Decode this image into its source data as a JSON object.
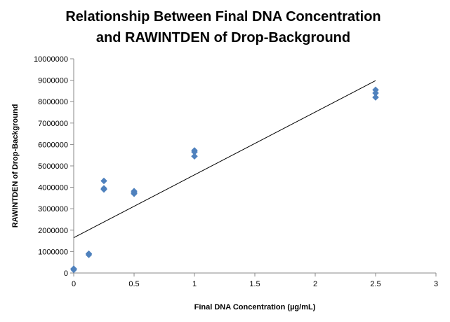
{
  "chart_data": {
    "type": "scatter",
    "title_lines": [
      "Relationship Between Final DNA Concentration",
      "and RAWINTDEN of Drop-Background"
    ],
    "xlabel": "Final DNA Concentration (µg/mL)",
    "ylabel": "RAWINTDEN of Drop-Background",
    "xlim": [
      0,
      3
    ],
    "ylim": [
      0,
      10000000
    ],
    "x_ticks": [
      0,
      0.5,
      1,
      1.5,
      2,
      2.5,
      3
    ],
    "x_tick_labels": [
      "0",
      "0.5",
      "1",
      "1.5",
      "2",
      "2.5",
      "3"
    ],
    "y_ticks": [
      0,
      1000000,
      2000000,
      3000000,
      4000000,
      5000000,
      6000000,
      7000000,
      8000000,
      9000000,
      10000000
    ],
    "y_tick_labels": [
      "0",
      "1000000",
      "2000000",
      "3000000",
      "4000000",
      "5000000",
      "6000000",
      "7000000",
      "8000000",
      "9000000",
      "10000000"
    ],
    "grid": false,
    "legend": "none",
    "series": [
      {
        "name": "Drop-Background",
        "marker": "diamond",
        "color": "#4F81BD",
        "points": [
          {
            "x": 0,
            "y": 150000
          },
          {
            "x": 0,
            "y": 200000
          },
          {
            "x": 0.125,
            "y": 850000
          },
          {
            "x": 0.125,
            "y": 900000
          },
          {
            "x": 0.25,
            "y": 3900000
          },
          {
            "x": 0.25,
            "y": 3950000
          },
          {
            "x": 0.25,
            "y": 4300000
          },
          {
            "x": 0.5,
            "y": 3700000
          },
          {
            "x": 0.5,
            "y": 3750000
          },
          {
            "x": 0.5,
            "y": 3820000
          },
          {
            "x": 1,
            "y": 5450000
          },
          {
            "x": 1,
            "y": 5650000
          },
          {
            "x": 1,
            "y": 5720000
          },
          {
            "x": 2.5,
            "y": 8200000
          },
          {
            "x": 2.5,
            "y": 8400000
          },
          {
            "x": 2.5,
            "y": 8550000
          }
        ]
      }
    ],
    "trendline": {
      "type": "linear",
      "color": "#000000",
      "start": {
        "x": 0,
        "y": 1650000
      },
      "end": {
        "x": 2.5,
        "y": 8980000
      }
    }
  }
}
